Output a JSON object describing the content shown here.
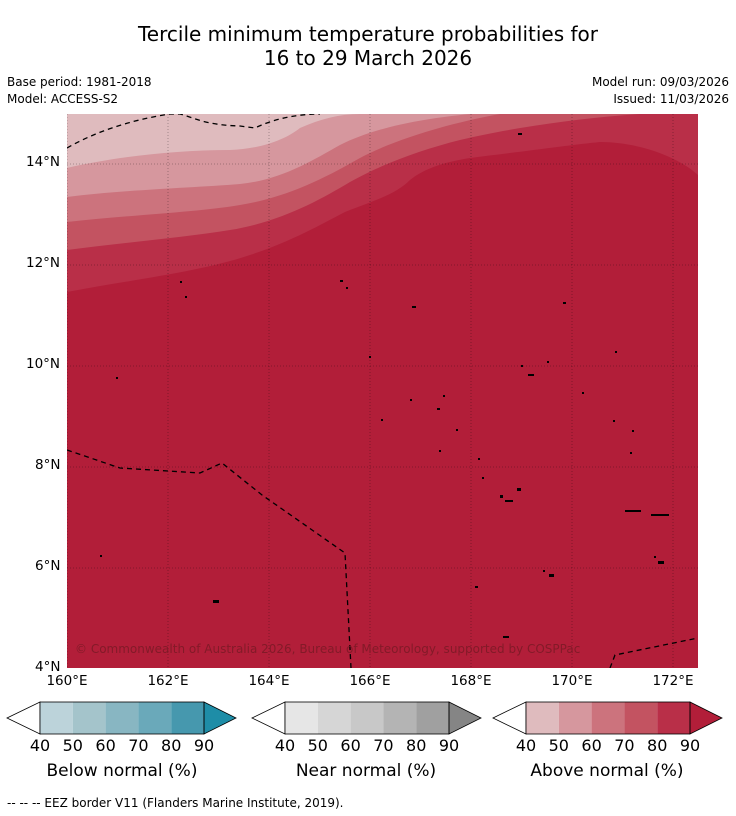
{
  "title": {
    "line1": "Tercile minimum temperature probabilities for",
    "line2": "16 to 29 March 2026"
  },
  "meta": {
    "base_period": "Base period: 1981-2018",
    "model": "Model: ACCESS-S2",
    "model_run": "Model run: 09/03/2026",
    "issued": "Issued: 11/03/2026"
  },
  "map": {
    "copyright": "© Commonwealth of Australia 2026, Bureau of Meteorology, supported by COSPPac",
    "lat_labels": [
      "14°N",
      "12°N",
      "10°N",
      "8°N",
      "6°N",
      "4°N"
    ],
    "lon_labels": [
      "160°E",
      "162°E",
      "164°E",
      "166°E",
      "168°E",
      "170°E",
      "172°E"
    ],
    "fill_colors": [
      "#dfbbbe",
      "#d6979e",
      "#cc737d",
      "#c35361",
      "#b92f48",
      "#b21e39"
    ]
  },
  "legend": {
    "below": {
      "label": "Below normal (%)",
      "colors": [
        "#ffffff",
        "#bcd3da",
        "#a4c4cb",
        "#88b6c2",
        "#6aa9ba",
        "#4698ae",
        "#1e8da7"
      ]
    },
    "near": {
      "label": "Near normal (%)",
      "colors": [
        "#ffffff",
        "#e6e6e6",
        "#d6d6d6",
        "#c8c8c8",
        "#b4b4b4",
        "#a0a0a0",
        "#858585"
      ]
    },
    "above": {
      "label": "Above normal (%)",
      "colors": [
        "#ffffff",
        "#dfbbbe",
        "#d6979e",
        "#cc737d",
        "#c35361",
        "#b92f48",
        "#b21e39"
      ]
    },
    "ticks": [
      "40",
      "50",
      "60",
      "70",
      "80",
      "90"
    ]
  },
  "footer": "--  --  -- EEZ border V11 (Flanders Marine Institute, 2019)."
}
